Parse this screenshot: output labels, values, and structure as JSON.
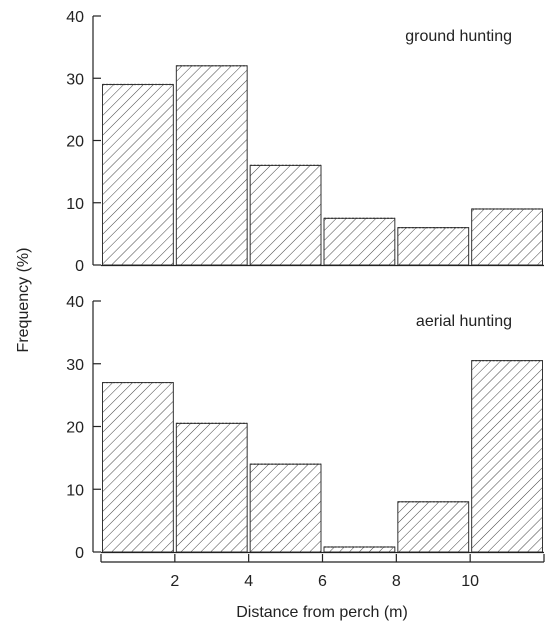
{
  "chart_data": [
    {
      "type": "bar",
      "title": "ground hunting",
      "xlabel": "Distance from perch (m)",
      "ylabel": "Frequency (%)",
      "categories": [
        "0-2",
        "2-4",
        "4-6",
        "6-8",
        "8-10",
        "10-12"
      ],
      "values": [
        29,
        32,
        16,
        7.5,
        6,
        9
      ],
      "ylim": [
        0,
        40
      ],
      "yticks": [
        "0",
        "10",
        "20",
        "30",
        "40"
      ]
    },
    {
      "type": "bar",
      "title": "aerial hunting",
      "xlabel": "Distance from perch (m)",
      "ylabel": "Frequency (%)",
      "categories": [
        "0-2",
        "2-4",
        "4-6",
        "6-8",
        "8-10",
        "10-12"
      ],
      "values": [
        27,
        20.5,
        14,
        0.8,
        8,
        30.5
      ],
      "ylim": [
        0,
        40
      ],
      "yticks": [
        "0",
        "10",
        "20",
        "30",
        "40"
      ]
    }
  ],
  "shared_axes": {
    "xlabel": "Distance from perch (m)",
    "ylabel": "Frequency (%)",
    "xlim": [
      0,
      12
    ],
    "xticks": [
      "2",
      "4",
      "6",
      "8",
      "10"
    ]
  },
  "style": {
    "hatch_color": "#333333",
    "bar_fill": "#ffffff"
  }
}
